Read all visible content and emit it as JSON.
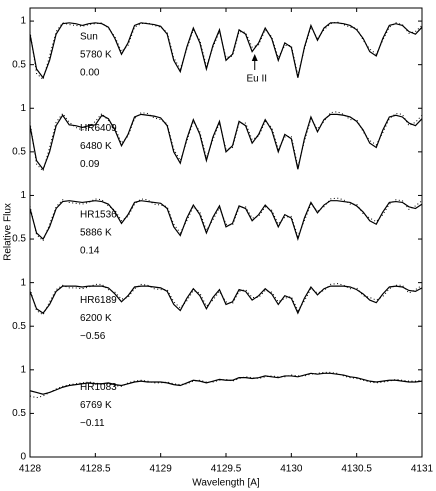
{
  "chart_data": {
    "type": "line",
    "xlabel": "Wavelength [A]",
    "ylabel": "Relative Flux",
    "xlim": [
      4128,
      4131
    ],
    "xticks": [
      4128,
      4128.5,
      4129,
      4129.5,
      4130,
      4130.5,
      4131
    ],
    "ylim": [
      0,
      5.15
    ],
    "yticks": [
      0,
      0.5,
      1,
      {
        "value": 1.5,
        "label": "0.5"
      },
      {
        "value": 2,
        "label": "1"
      },
      {
        "value": 2.5,
        "label": "0.5"
      },
      {
        "value": 3,
        "label": "1"
      },
      {
        "value": 3.5,
        "label": "0.5"
      },
      {
        "value": 4,
        "label": "1"
      },
      {
        "value": 4.5,
        "label": "0.5"
      },
      {
        "value": 5,
        "label": "1"
      }
    ],
    "annotation": {
      "text": "Eu II",
      "x": 4129.72
    },
    "x": [
      4128,
      4128.05,
      4128.1,
      4128.15,
      4128.2,
      4128.25,
      4128.3,
      4128.35,
      4128.4,
      4128.45,
      4128.5,
      4128.55,
      4128.6,
      4128.65,
      4128.7,
      4128.75,
      4128.8,
      4128.85,
      4128.9,
      4128.95,
      4129,
      4129.05,
      4129.1,
      4129.15,
      4129.2,
      4129.25,
      4129.3,
      4129.35,
      4129.4,
      4129.45,
      4129.5,
      4129.55,
      4129.6,
      4129.65,
      4129.7,
      4129.75,
      4129.8,
      4129.85,
      4129.9,
      4129.95,
      4130,
      4130.05,
      4130.1,
      4130.15,
      4130.2,
      4130.25,
      4130.3,
      4130.35,
      4130.4,
      4130.45,
      4130.5,
      4130.55,
      4130.6,
      4130.65,
      4130.7,
      4130.75,
      4130.8,
      4130.85,
      4130.9,
      4130.95,
      4131
    ],
    "series": [
      {
        "name": "Sun",
        "teff": "5780 K",
        "param": "0.00",
        "color": "#000000",
        "values": [
          4.85,
          4.45,
          4.35,
          4.55,
          4.85,
          4.97,
          4.98,
          4.97,
          4.95,
          4.97,
          4.98,
          4.97,
          4.93,
          4.8,
          4.62,
          4.75,
          4.95,
          4.98,
          4.97,
          4.96,
          4.94,
          4.85,
          4.55,
          4.42,
          4.7,
          4.92,
          4.75,
          4.45,
          4.72,
          4.9,
          4.55,
          4.62,
          4.9,
          4.85,
          4.65,
          4.75,
          4.92,
          4.8,
          4.55,
          4.75,
          4.7,
          4.35,
          4.7,
          4.95,
          4.78,
          4.92,
          4.98,
          4.98,
          4.97,
          4.95,
          4.9,
          4.8,
          4.65,
          4.6,
          4.8,
          4.95,
          4.97,
          4.95,
          4.88,
          4.85,
          4.93
        ],
        "dotted_values": [
          4.88,
          4.4,
          4.33,
          4.6,
          4.88,
          4.98,
          4.96,
          4.95,
          4.94,
          4.96,
          4.97,
          4.98,
          4.92,
          4.82,
          4.65,
          4.72,
          4.93,
          4.97,
          4.98,
          4.95,
          4.93,
          4.87,
          4.58,
          4.45,
          4.68,
          4.9,
          4.78,
          4.48,
          4.7,
          4.88,
          4.58,
          4.6,
          4.88,
          4.87,
          4.7,
          4.73,
          4.9,
          4.82,
          4.58,
          4.72,
          4.72,
          4.38,
          4.68,
          4.93,
          4.8,
          4.9,
          4.97,
          4.99,
          4.96,
          4.93,
          4.92,
          4.78,
          4.68,
          4.62,
          4.78,
          4.93,
          4.98,
          4.96,
          4.86,
          4.88,
          4.95
        ]
      },
      {
        "name": "HR6409",
        "teff": "6480 K",
        "param": "0.09",
        "color": "#000000",
        "values": [
          3.8,
          3.4,
          3.3,
          3.5,
          3.8,
          3.92,
          3.81,
          3.8,
          3.78,
          3.8,
          3.81,
          3.92,
          3.88,
          3.75,
          3.57,
          3.7,
          3.9,
          3.93,
          3.92,
          3.91,
          3.89,
          3.8,
          3.5,
          3.37,
          3.65,
          3.87,
          3.7,
          3.4,
          3.67,
          3.85,
          3.5,
          3.57,
          3.85,
          3.8,
          3.6,
          3.7,
          3.87,
          3.75,
          3.5,
          3.7,
          3.65,
          3.3,
          3.65,
          3.9,
          3.73,
          3.87,
          3.93,
          3.93,
          3.92,
          3.9,
          3.85,
          3.75,
          3.6,
          3.55,
          3.75,
          3.9,
          3.92,
          3.9,
          3.83,
          3.8,
          3.88
        ],
        "dotted_values": [
          3.84,
          3.36,
          3.28,
          3.55,
          3.84,
          3.94,
          3.84,
          3.78,
          3.75,
          3.78,
          3.85,
          3.94,
          3.86,
          3.78,
          3.6,
          3.68,
          3.88,
          3.95,
          3.94,
          3.89,
          3.87,
          3.82,
          3.53,
          3.4,
          3.62,
          3.85,
          3.73,
          3.43,
          3.64,
          3.83,
          3.53,
          3.55,
          3.83,
          3.83,
          3.64,
          3.68,
          3.85,
          3.78,
          3.53,
          3.67,
          3.68,
          3.33,
          3.62,
          3.88,
          3.76,
          3.85,
          3.95,
          3.96,
          3.93,
          3.87,
          3.87,
          3.73,
          3.63,
          3.58,
          3.72,
          3.88,
          3.94,
          3.93,
          3.8,
          3.84,
          3.92
        ]
      },
      {
        "name": "HR1536",
        "teff": "5886 K",
        "param": "0.14",
        "color": "#000000",
        "values": [
          2.85,
          2.57,
          2.5,
          2.64,
          2.85,
          2.93,
          2.94,
          2.93,
          2.92,
          2.93,
          2.94,
          2.93,
          2.9,
          2.81,
          2.68,
          2.78,
          2.92,
          2.94,
          2.93,
          2.92,
          2.91,
          2.85,
          2.64,
          2.54,
          2.74,
          2.89,
          2.78,
          2.57,
          2.75,
          2.88,
          2.64,
          2.68,
          2.88,
          2.85,
          2.71,
          2.78,
          2.89,
          2.81,
          2.64,
          2.78,
          2.74,
          2.5,
          2.74,
          2.92,
          2.8,
          2.89,
          2.94,
          2.94,
          2.93,
          2.92,
          2.88,
          2.81,
          2.71,
          2.67,
          2.81,
          2.92,
          2.93,
          2.92,
          2.87,
          2.85,
          2.9
        ],
        "dotted_values": [
          2.88,
          2.55,
          2.48,
          2.67,
          2.87,
          2.95,
          2.92,
          2.91,
          2.9,
          2.92,
          2.96,
          2.95,
          2.88,
          2.83,
          2.71,
          2.76,
          2.9,
          2.96,
          2.95,
          2.9,
          2.89,
          2.87,
          2.67,
          2.57,
          2.71,
          2.87,
          2.81,
          2.6,
          2.72,
          2.86,
          2.67,
          2.66,
          2.86,
          2.87,
          2.74,
          2.76,
          2.87,
          2.83,
          2.67,
          2.75,
          2.76,
          2.53,
          2.71,
          2.9,
          2.82,
          2.87,
          2.96,
          2.97,
          2.95,
          2.9,
          2.9,
          2.79,
          2.74,
          2.7,
          2.78,
          2.9,
          2.95,
          2.94,
          2.84,
          2.88,
          2.94
        ]
      },
      {
        "name": "HR6189",
        "teff": "6200 K",
        "param": "−0.56",
        "color": "#000000",
        "values": [
          1.9,
          1.7,
          1.65,
          1.75,
          1.9,
          1.96,
          1.96,
          1.96,
          1.95,
          1.96,
          1.96,
          1.96,
          1.94,
          1.87,
          1.78,
          1.85,
          1.95,
          1.96,
          1.96,
          1.95,
          1.94,
          1.9,
          1.75,
          1.68,
          1.82,
          1.93,
          1.85,
          1.7,
          1.83,
          1.92,
          1.75,
          1.78,
          1.92,
          1.9,
          1.8,
          1.85,
          1.93,
          1.87,
          1.75,
          1.85,
          1.82,
          1.65,
          1.82,
          1.95,
          1.86,
          1.93,
          1.96,
          1.96,
          1.96,
          1.95,
          1.92,
          1.87,
          1.8,
          1.77,
          1.87,
          1.95,
          1.96,
          1.95,
          1.91,
          1.9,
          1.94
        ],
        "dotted_values": [
          1.93,
          1.68,
          1.63,
          1.78,
          1.92,
          1.97,
          1.94,
          1.94,
          1.93,
          1.95,
          1.98,
          1.98,
          1.92,
          1.89,
          1.81,
          1.83,
          1.93,
          1.98,
          1.97,
          1.93,
          1.92,
          1.92,
          1.78,
          1.71,
          1.79,
          1.91,
          1.88,
          1.73,
          1.8,
          1.9,
          1.78,
          1.76,
          1.9,
          1.92,
          1.83,
          1.83,
          1.91,
          1.89,
          1.78,
          1.82,
          1.84,
          1.68,
          1.79,
          1.93,
          1.88,
          1.91,
          1.98,
          1.99,
          1.97,
          1.93,
          1.94,
          1.85,
          1.83,
          1.8,
          1.84,
          1.93,
          1.97,
          1.97,
          1.88,
          1.92,
          1.97
        ]
      },
      {
        "name": "HR1083",
        "teff": "6769 K",
        "param": "−0.11",
        "color": "#000000",
        "values": [
          0.76,
          0.74,
          0.72,
          0.74,
          0.77,
          0.8,
          0.82,
          0.83,
          0.84,
          0.85,
          0.84,
          0.84,
          0.85,
          0.83,
          0.82,
          0.84,
          0.86,
          0.87,
          0.86,
          0.86,
          0.86,
          0.85,
          0.83,
          0.82,
          0.85,
          0.88,
          0.87,
          0.85,
          0.87,
          0.89,
          0.88,
          0.88,
          0.91,
          0.91,
          0.9,
          0.91,
          0.93,
          0.92,
          0.91,
          0.93,
          0.93,
          0.92,
          0.94,
          0.96,
          0.95,
          0.96,
          0.96,
          0.95,
          0.94,
          0.92,
          0.91,
          0.89,
          0.87,
          0.86,
          0.87,
          0.88,
          0.88,
          0.87,
          0.86,
          0.86,
          0.87
        ],
        "dotted_values": [
          0.7,
          0.68,
          0.7,
          0.74,
          0.78,
          0.81,
          0.83,
          0.84,
          0.85,
          0.86,
          0.85,
          0.83,
          0.84,
          0.82,
          0.81,
          0.85,
          0.87,
          0.88,
          0.87,
          0.85,
          0.85,
          0.86,
          0.84,
          0.83,
          0.84,
          0.87,
          0.88,
          0.86,
          0.86,
          0.88,
          0.89,
          0.87,
          0.9,
          0.92,
          0.91,
          0.9,
          0.92,
          0.93,
          0.92,
          0.92,
          0.94,
          0.93,
          0.93,
          0.95,
          0.96,
          0.97,
          0.97,
          0.96,
          0.93,
          0.91,
          0.9,
          0.88,
          0.86,
          0.85,
          0.86,
          0.87,
          0.89,
          0.88,
          0.87,
          0.87,
          0.88
        ]
      }
    ]
  }
}
